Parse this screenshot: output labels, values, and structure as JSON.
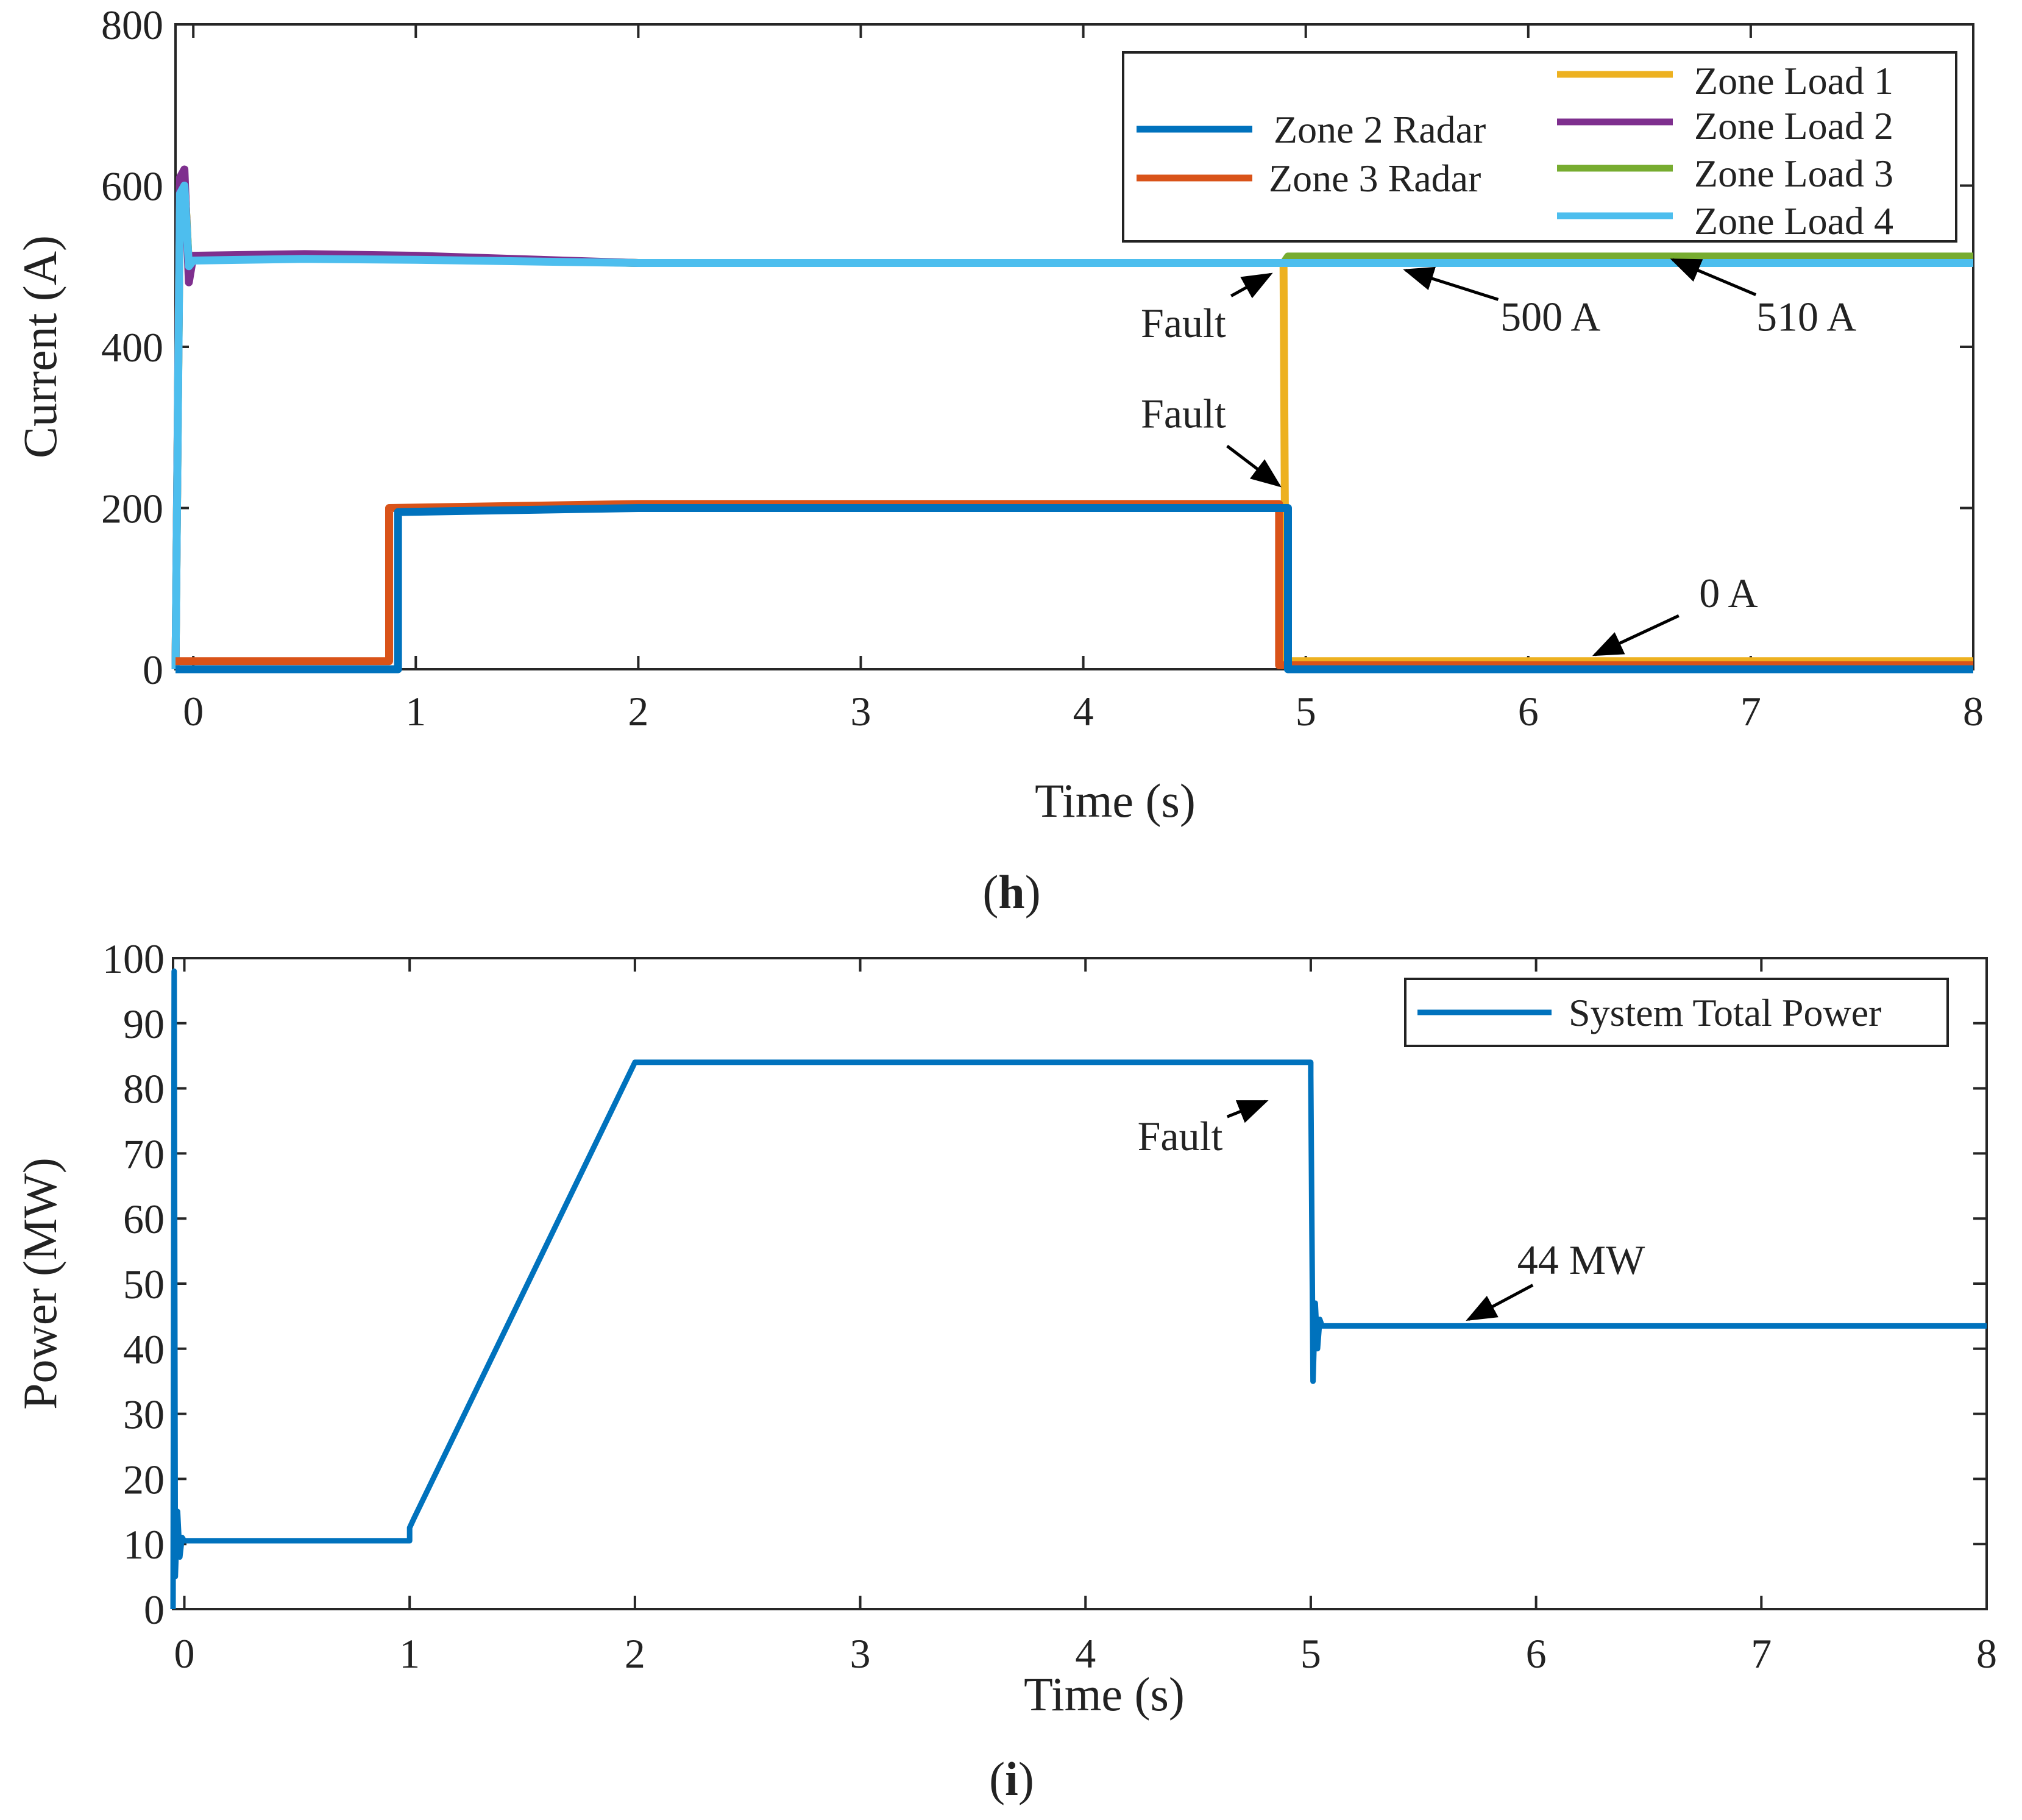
{
  "chart_data": [
    {
      "id": "h",
      "type": "line",
      "caption": {
        "open": "(",
        "letter": "h",
        "close": ")"
      },
      "xlabel": "Time (s)",
      "ylabel": "Current (A)",
      "xlim": [
        -0.08,
        8
      ],
      "ylim": [
        0,
        800
      ],
      "xticks": [
        0,
        1,
        2,
        3,
        4,
        5,
        6,
        7,
        8
      ],
      "yticks": [
        0,
        200,
        400,
        600,
        800
      ],
      "grid": false,
      "legend_position": "top-right",
      "series": [
        {
          "name": "Zone 2 Radar",
          "color": "#0072BD",
          "x": [
            -0.08,
            0.92,
            0.92,
            2.0,
            4.92,
            4.92,
            8.0
          ],
          "y": [
            0,
            0,
            195,
            200,
            200,
            0,
            0
          ]
        },
        {
          "name": "Zone 3 Radar",
          "color": "#D95319",
          "x": [
            -0.08,
            0.88,
            0.88,
            2.0,
            4.88,
            4.88,
            8.0
          ],
          "y": [
            10,
            10,
            200,
            205,
            205,
            5,
            5
          ]
        },
        {
          "name": "Zone Load 1",
          "color": "#EDB120",
          "x": [
            -0.08,
            -0.06,
            -0.04,
            -0.02,
            0.0,
            0.5,
            1.0,
            2.0,
            4.9,
            4.9,
            4.91,
            8.0
          ],
          "y": [
            0,
            600,
            610,
            500,
            510,
            512,
            511,
            504,
            504,
            500,
            10,
            10
          ]
        },
        {
          "name": "Zone Load 2",
          "color": "#7E2F8E",
          "x": [
            -0.08,
            -0.06,
            -0.04,
            -0.02,
            0.0,
            0.5,
            1.0,
            2.0,
            8.0
          ],
          "y": [
            0,
            610,
            620,
            480,
            513,
            515,
            513,
            504,
            504
          ]
        },
        {
          "name": "Zone Load 3",
          "color": "#77AC30",
          "x": [
            -0.08,
            -0.06,
            -0.04,
            -0.02,
            0.0,
            0.5,
            1.0,
            2.0,
            4.9,
            4.92,
            8.0
          ],
          "y": [
            0,
            600,
            610,
            500,
            510,
            512,
            511,
            504,
            504,
            512,
            512
          ]
        },
        {
          "name": "Zone Load 4",
          "color": "#4DBEEE",
          "x": [
            -0.08,
            -0.06,
            -0.04,
            -0.02,
            0.0,
            0.5,
            1.0,
            2.0,
            8.0
          ],
          "y": [
            0,
            590,
            600,
            500,
            507,
            509,
            508,
            504,
            504
          ]
        }
      ],
      "annotations": [
        {
          "text": "Fault",
          "arrow_to": [
            4.84,
            490
          ],
          "text_at": [
            4.45,
            412
          ]
        },
        {
          "text": "Fault",
          "arrow_to": [
            4.88,
            228
          ],
          "text_at": [
            4.45,
            300
          ]
        },
        {
          "text": "500 A",
          "arrow_to": [
            5.45,
            495
          ],
          "text_at": [
            6.1,
            420
          ]
        },
        {
          "text": "510 A",
          "arrow_to": [
            6.65,
            508
          ],
          "text_at": [
            7.25,
            420
          ]
        },
        {
          "text": "0 A",
          "arrow_to": [
            6.3,
            18
          ],
          "text_at": [
            6.9,
            77
          ]
        }
      ]
    },
    {
      "id": "i",
      "type": "line",
      "caption": {
        "open": "(",
        "letter": "i",
        "close": ")"
      },
      "xlabel": "Time (s)",
      "ylabel": "Power (MW)",
      "xlim": [
        -0.05,
        8
      ],
      "ylim": [
        0,
        100
      ],
      "xticks": [
        0,
        1,
        2,
        3,
        4,
        5,
        6,
        7,
        8
      ],
      "yticks": [
        0,
        10,
        20,
        30,
        40,
        50,
        60,
        70,
        80,
        90,
        100
      ],
      "grid": false,
      "legend_position": "top-right",
      "series": [
        {
          "name": "System Total Power",
          "color": "#0072BD",
          "x": [
            -0.05,
            -0.045,
            -0.04,
            -0.03,
            -0.02,
            -0.01,
            0.0,
            1.0,
            1.0,
            1.02,
            2.0,
            5.0,
            5.0,
            5.01,
            5.02,
            5.03,
            5.04,
            5.05,
            5.07,
            8.0
          ],
          "y": [
            0,
            98,
            5,
            15,
            8,
            11,
            10.5,
            10.5,
            12.5,
            14,
            84,
            84,
            82,
            35,
            47,
            40,
            44.5,
            43.5,
            43.5,
            43.5
          ]
        }
      ],
      "annotations": [
        {
          "text": "Fault",
          "arrow_to": [
            4.8,
            78
          ],
          "text_at": [
            4.42,
            70.5
          ]
        },
        {
          "text": "44 MW",
          "arrow_to": [
            5.7,
            44.5
          ],
          "text_at": [
            6.2,
            51.5
          ]
        }
      ]
    }
  ]
}
